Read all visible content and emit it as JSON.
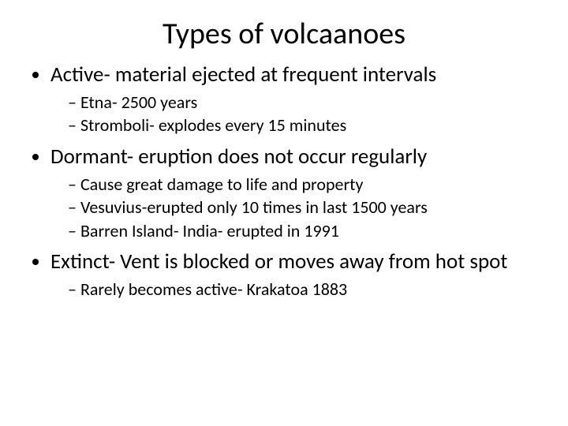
{
  "title": "Types of volcaanoes",
  "bullets": {
    "b0": {
      "text": "Active- material ejected at frequent intervals",
      "subs": {
        "s0": "Etna- 2500 years",
        "s1": "Stromboli- explodes every 15 minutes"
      }
    },
    "b1": {
      "text": "Dormant- eruption does not occur regularly",
      "subs": {
        "s0": "Cause great damage to life and property",
        "s1": "Vesuvius-erupted only 10 times in last 1500 years",
        "s2": "Barren Island- India- erupted in 1991"
      }
    },
    "b2": {
      "text": "Extinct- Vent is blocked or moves away from hot spot",
      "subs": {
        "s0": "Rarely becomes active- Krakatoa 1883"
      }
    }
  },
  "colors": {
    "background": "#ffffff",
    "text": "#000000"
  },
  "typography": {
    "title_fontsize_pt": 38,
    "bullet_fontsize_pt": 27,
    "sub_fontsize_pt": 22,
    "font_family": "Calibri"
  }
}
